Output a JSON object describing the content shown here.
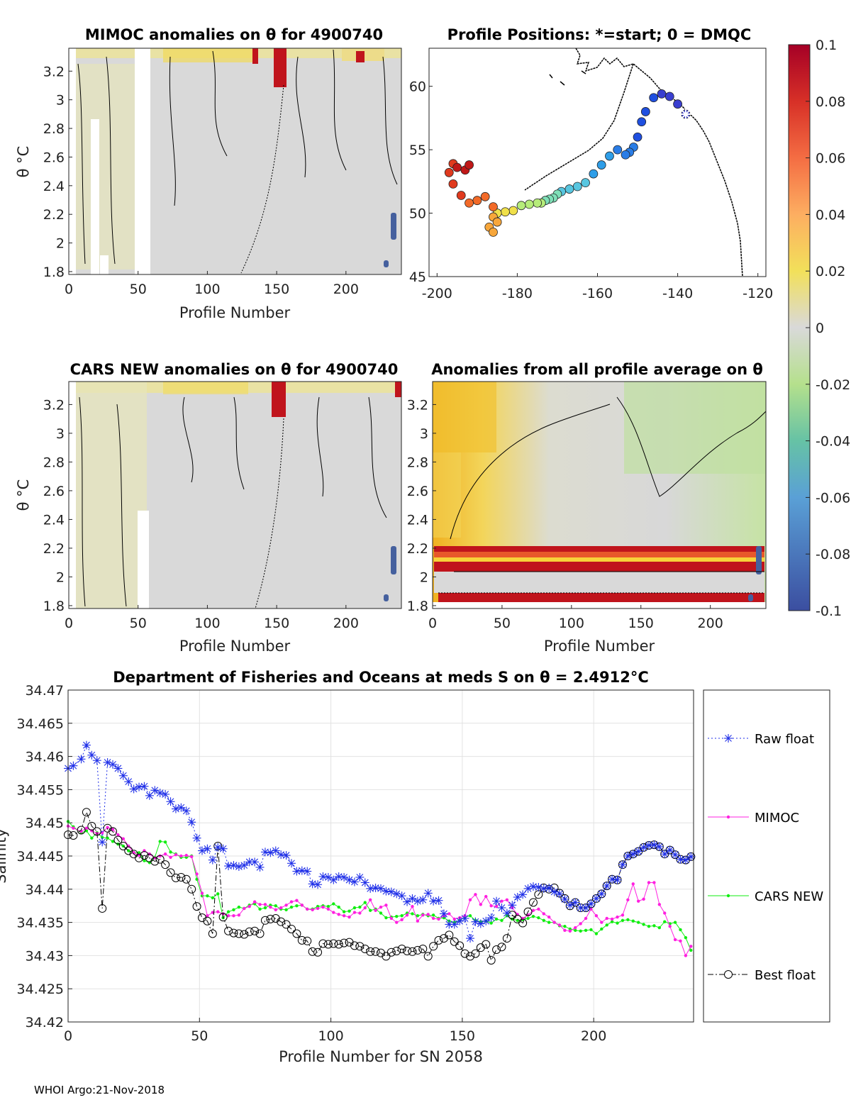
{
  "chart_data": [
    {
      "type": "heatmap",
      "title": "MIMOC anomalies on θ  for 4900740",
      "xlabel": "Profile Number",
      "ylabel": "θ °C",
      "xlim": [
        0,
        240
      ],
      "ylim": [
        1.78,
        3.36
      ],
      "xticks": [
        "0",
        "50",
        "100",
        "150",
        "200"
      ],
      "yticks": [
        "1.8",
        "2",
        "2.2",
        "2.4",
        "2.6",
        "2.8",
        "3",
        "3.2"
      ],
      "data_gaps_profile_ranges": [
        [
          0,
          5
        ],
        [
          16,
          21
        ],
        [
          23,
          28
        ],
        [
          47,
          59
        ]
      ]
    },
    {
      "type": "scatter",
      "title": "Profile Positions: *=start; 0 = DMQC",
      "xlim": [
        -202,
        -118
      ],
      "ylim": [
        45,
        63
      ],
      "xticks": [
        "-200",
        "-180",
        "-160",
        "-140",
        "-120"
      ],
      "yticks": [
        "45",
        "50",
        "55",
        "60"
      ],
      "start_marker": {
        "lon": -138,
        "lat": 57.8
      },
      "track_lon": [
        -138,
        -140,
        -142,
        -144,
        -146,
        -148,
        -149,
        -150,
        -151,
        -152,
        -153,
        -155,
        -157,
        -159,
        -161,
        -163,
        -165,
        -167,
        -169,
        -170,
        -171,
        -172,
        -173,
        -174,
        -175,
        -177,
        -179,
        -181,
        -183,
        -185,
        -186,
        -187,
        -186,
        -185,
        -186,
        -188,
        -190,
        -192,
        -194,
        -196,
        -197,
        -196,
        -195,
        -193,
        -192
      ],
      "track_lat": [
        57.8,
        58.6,
        59.2,
        59.4,
        59.1,
        58.0,
        57.2,
        56.0,
        55.2,
        54.8,
        54.6,
        55.0,
        54.5,
        53.8,
        53.1,
        52.4,
        52.1,
        51.9,
        51.7,
        51.5,
        51.2,
        51.1,
        51.0,
        50.8,
        50.8,
        50.7,
        50.6,
        50.2,
        50.1,
        50.0,
        49.7,
        48.9,
        48.5,
        49.3,
        50.5,
        51.3,
        51.0,
        50.8,
        51.4,
        52.3,
        53.2,
        53.9,
        53.6,
        53.4,
        53.8
      ],
      "colorbar": {
        "min": -0.1,
        "max": 0.1,
        "ticks": [
          "0.1",
          "0.08",
          "0.06",
          "0.04",
          "0.02",
          "0",
          "-0.02",
          "-0.04",
          "-0.06",
          "-0.08",
          "-0.1"
        ]
      }
    },
    {
      "type": "heatmap",
      "title": "CARS NEW anomalies on θ for 4900740",
      "xlabel": "Profile Number",
      "ylabel": "θ °C",
      "xlim": [
        0,
        240
      ],
      "ylim": [
        1.78,
        3.36
      ],
      "xticks": [
        "0",
        "50",
        "100",
        "150",
        "200"
      ],
      "yticks": [
        "1.8",
        "2",
        "2.2",
        "2.4",
        "2.6",
        "2.8",
        "3",
        "3.2"
      ],
      "data_gaps_profile_ranges": [
        [
          0,
          5
        ],
        [
          49,
          58
        ]
      ]
    },
    {
      "type": "heatmap",
      "title": "Anomalies from all profile average on θ",
      "xlabel": "Profile Number",
      "xlim": [
        0,
        240
      ],
      "ylim": [
        1.78,
        3.36
      ],
      "xticks": [
        "0",
        "50",
        "100",
        "150",
        "200"
      ],
      "yticks": [
        "1.8",
        "2",
        "2.2",
        "2.4",
        "2.6",
        "2.8",
        "3",
        "3.2"
      ],
      "high_anomaly_bands_theta": [
        [
          2.05,
          2.22
        ],
        [
          1.84,
          1.88
        ]
      ]
    },
    {
      "type": "line",
      "title": "Department of Fisheries and Oceans at meds S on θ = 2.4912°C",
      "xlabel": "Profile Number for SN 2058",
      "ylabel": "Salinity",
      "xlim": [
        0,
        238
      ],
      "ylim": [
        34.42,
        34.47
      ],
      "grid": true,
      "legend_position": "outside-right",
      "xticks": [
        "0",
        "50",
        "100",
        "150",
        "200"
      ],
      "yticks": [
        "34.42",
        "34.425",
        "34.43",
        "34.435",
        "34.44",
        "34.445",
        "34.45",
        "34.455",
        "34.46",
        "34.465",
        "34.47"
      ],
      "x": [
        0,
        2,
        5,
        7,
        9,
        11,
        13,
        15,
        17,
        19,
        21,
        23,
        25,
        27,
        29,
        31,
        33,
        35,
        37,
        39,
        41,
        43,
        45,
        47,
        49,
        51,
        53,
        55,
        57,
        59,
        61,
        63,
        65,
        67,
        69,
        71,
        73,
        75,
        77,
        79,
        81,
        83,
        85,
        87,
        89,
        91,
        93,
        95,
        97,
        99,
        101,
        103,
        105,
        107,
        109,
        111,
        113,
        115,
        117,
        119,
        121,
        123,
        125,
        127,
        129,
        131,
        133,
        135,
        137,
        139,
        141,
        143,
        145,
        147,
        149,
        151,
        153,
        155,
        157,
        159,
        161,
        163,
        165,
        167,
        169,
        171,
        173,
        175,
        177,
        179,
        181,
        183,
        185,
        187,
        189,
        191,
        193,
        195,
        197,
        199,
        201,
        203,
        205,
        207,
        209,
        211,
        213,
        215,
        217,
        219,
        221,
        223,
        225,
        227,
        229,
        231,
        233,
        235,
        237
      ],
      "series": [
        {
          "name": "Raw float",
          "values": [
            34.4582,
            34.4586,
            34.4596,
            34.4617,
            34.4602,
            34.4594,
            34.4471,
            34.4591,
            34.4588,
            34.4582,
            34.4571,
            34.4562,
            34.4551,
            34.4554,
            34.4555,
            34.4541,
            34.4549,
            34.4545,
            34.4543,
            34.4532,
            34.4521,
            34.4523,
            34.4518,
            34.4501,
            34.4477,
            34.4458,
            34.4461,
            34.4444,
            34.4463,
            34.4461,
            34.4435,
            34.4436,
            34.4434,
            34.4436,
            34.4441,
            34.4441,
            34.4433,
            34.4456,
            34.4455,
            34.4458,
            34.4452,
            34.4451,
            34.4439,
            34.4427,
            34.4428,
            34.4427,
            34.4408,
            34.4407,
            34.4419,
            34.4418,
            34.4414,
            34.4419,
            34.4418,
            34.4414,
            34.4411,
            34.4418,
            34.441,
            34.4401,
            34.4402,
            34.4401,
            34.4397,
            34.4396,
            34.4393,
            34.439,
            34.4381,
            34.4386,
            34.4382,
            34.4384,
            34.4394,
            34.4382,
            34.4383,
            34.4363,
            34.4347,
            34.4347,
            34.4352,
            34.4356,
            34.4326,
            34.4351,
            34.4348,
            34.4352,
            34.4357,
            34.4382,
            34.4372,
            34.4364,
            34.4376,
            34.4388,
            34.4392,
            34.4401,
            34.4404,
            34.4403,
            34.4401,
            34.4402,
            34.4396,
            34.4393,
            34.4385,
            34.4376,
            34.438,
            34.4372,
            34.4372,
            34.4378,
            34.4386,
            34.4393,
            34.4405,
            34.4415,
            34.4414,
            34.4437,
            34.445,
            34.4453,
            34.4457,
            34.4463,
            34.4466,
            34.4467,
            34.4464,
            34.4453,
            34.4459,
            34.4452,
            34.4445,
            34.4444,
            34.4449
          ]
        },
        {
          "name": "MIMOC",
          "values": [
            34.4495,
            34.4492,
            34.4487,
            34.4492,
            34.4488,
            34.4484,
            34.4485,
            34.4493,
            34.449,
            34.4482,
            34.4476,
            34.4465,
            34.4455,
            34.4451,
            34.4458,
            34.4453,
            34.4447,
            34.445,
            34.4453,
            34.4448,
            34.4452,
            34.445,
            34.4451,
            34.4449,
            34.4423,
            34.4394,
            34.436,
            34.4365,
            34.4366,
            34.4363,
            34.436,
            34.436,
            34.4361,
            34.4371,
            34.4374,
            34.4381,
            34.4377,
            34.4377,
            34.4373,
            34.4369,
            34.4372,
            34.4376,
            34.4381,
            34.4383,
            34.4376,
            34.437,
            34.4369,
            34.4371,
            34.4373,
            34.437,
            34.4365,
            34.4362,
            34.436,
            34.4358,
            34.4365,
            34.4364,
            34.4372,
            34.4384,
            34.4368,
            34.4373,
            34.4376,
            34.4356,
            34.435,
            34.4354,
            34.4361,
            34.4374,
            34.4352,
            34.4361,
            34.4362,
            34.4356,
            34.4355,
            34.436,
            34.4363,
            34.4355,
            34.4357,
            34.436,
            34.4384,
            34.4392,
            34.4377,
            34.4389,
            34.4375,
            34.4374,
            34.4382,
            34.4384,
            34.4372,
            34.4362,
            34.4356,
            34.4361,
            34.4368,
            34.437,
            34.4363,
            34.4358,
            34.435,
            34.4346,
            34.4338,
            34.4337,
            34.4342,
            34.4348,
            34.4356,
            34.437,
            34.436,
            34.435,
            34.4356,
            34.4355,
            34.4358,
            34.4361,
            34.4384,
            34.4408,
            34.4382,
            34.4385,
            34.441,
            34.441,
            34.4377,
            34.4364,
            34.4344,
            34.4324,
            34.4322,
            34.43,
            34.4314
          ]
        },
        {
          "name": "CARS NEW",
          "values": [
            34.4502,
            34.4494,
            34.4485,
            34.4488,
            34.4477,
            34.4485,
            34.4478,
            34.4477,
            34.4472,
            34.4468,
            34.4465,
            34.4458,
            34.4455,
            34.4455,
            34.4443,
            34.444,
            34.4448,
            34.4472,
            34.4471,
            34.4456,
            34.4453,
            34.4448,
            34.4448,
            34.445,
            34.4415,
            34.439,
            34.439,
            34.4387,
            34.4393,
            34.4357,
            34.4366,
            34.4369,
            34.4373,
            34.4371,
            34.4376,
            34.4378,
            34.437,
            34.4372,
            34.4376,
            34.4375,
            34.437,
            34.4369,
            34.4373,
            34.4375,
            34.4376,
            34.437,
            34.437,
            34.4374,
            34.4375,
            34.4374,
            34.4378,
            34.4373,
            34.4366,
            34.4367,
            34.4372,
            34.4373,
            34.438,
            34.4368,
            34.437,
            34.4364,
            34.4357,
            34.4358,
            34.4359,
            34.436,
            34.4364,
            34.4363,
            34.436,
            34.4362,
            34.436,
            34.4361,
            34.4356,
            34.4357,
            34.4352,
            34.435,
            34.4353,
            34.4358,
            34.436,
            34.4353,
            34.4351,
            34.4352,
            34.4349,
            34.4355,
            34.4353,
            34.436,
            34.4355,
            34.4353,
            34.4354,
            34.4356,
            34.4359,
            34.4357,
            34.4353,
            34.435,
            34.435,
            34.4345,
            34.4344,
            34.434,
            34.4338,
            34.4337,
            34.4338,
            34.4339,
            34.4333,
            34.434,
            34.4346,
            34.4351,
            34.4349,
            34.4353,
            34.4354,
            34.4352,
            34.435,
            34.4347,
            34.4344,
            34.4345,
            34.4342,
            34.4351,
            34.4348,
            34.435,
            34.4339,
            34.4327,
            34.4308
          ]
        },
        {
          "name": "Best float",
          "values": [
            34.4482,
            34.4481,
            34.4489,
            34.4516,
            34.4495,
            34.4487,
            34.4371,
            34.4492,
            34.4487,
            34.4474,
            34.4465,
            34.4458,
            34.4453,
            34.4447,
            34.4451,
            34.4447,
            34.4442,
            34.4445,
            34.4437,
            34.4425,
            34.4417,
            34.4418,
            34.4415,
            34.44,
            34.4374,
            34.4357,
            34.4352,
            34.4333,
            34.4465,
            34.4358,
            34.4337,
            34.4334,
            34.4333,
            34.4332,
            34.4336,
            34.4337,
            34.4333,
            34.4353,
            34.4355,
            34.4356,
            34.4351,
            34.4347,
            34.434,
            34.4333,
            34.4323,
            34.4322,
            34.4306,
            34.4305,
            34.4318,
            34.4317,
            34.4318,
            34.4317,
            34.4319,
            34.432,
            34.4315,
            34.4314,
            34.431,
            34.4306,
            34.4306,
            34.4304,
            34.4299,
            34.4305,
            34.4307,
            34.431,
            34.4307,
            34.4306,
            34.4308,
            34.431,
            34.4299,
            34.4314,
            34.4323,
            34.4326,
            34.4331,
            34.4321,
            34.4315,
            34.4303,
            34.4299,
            34.4303,
            34.4312,
            34.4317,
            34.4293,
            34.4309,
            34.4313,
            34.4326,
            34.4361,
            34.4355,
            34.4349,
            34.4366,
            34.438,
            34.4392,
            34.4402,
            34.44,
            34.4402,
            34.4394,
            34.4386,
            34.4375,
            34.438,
            34.4372,
            34.4372,
            34.4378,
            34.4386,
            34.4393,
            34.4405,
            34.4415,
            34.4414,
            34.4437,
            34.445,
            34.4453,
            34.4457,
            34.4463,
            34.4466,
            34.4467,
            34.4464,
            34.4453,
            34.4459,
            34.4452,
            34.4445,
            34.4444,
            34.4449
          ]
        }
      ]
    }
  ],
  "footer": "WHOI Argo:21-Nov-2018"
}
